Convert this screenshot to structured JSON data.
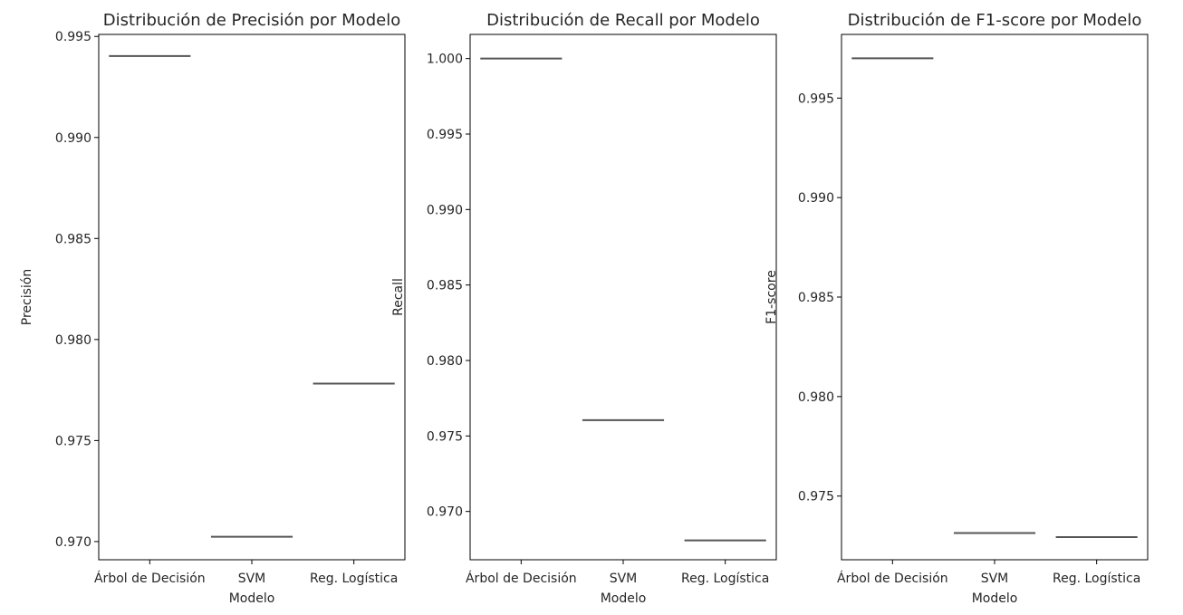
{
  "chart_data": [
    {
      "type": "box",
      "title": "Distribución de Precisión por Modelo",
      "xlabel": "Modelo",
      "ylabel": "Precisión",
      "categories": [
        "Árbol de Decisión",
        "SVM",
        "Reg. Logística"
      ],
      "values": [
        0.99403,
        0.97024,
        0.97782
      ],
      "ylim": [
        0.9691,
        0.9951
      ],
      "yticks": [
        0.97,
        0.975,
        0.98,
        0.985,
        0.99,
        0.995
      ],
      "ytick_labels": [
        "0.970",
        "0.975",
        "0.980",
        "0.985",
        "0.990",
        "0.995"
      ],
      "grid": false
    },
    {
      "type": "box",
      "title": "Distribución de Recall por Modelo",
      "xlabel": "Modelo",
      "ylabel": "Recall",
      "categories": [
        "Árbol de Decisión",
        "SVM",
        "Reg. Logística"
      ],
      "values": [
        1.0,
        0.97605,
        0.96808
      ],
      "ylim": [
        0.9668,
        1.0016
      ],
      "yticks": [
        0.97,
        0.975,
        0.98,
        0.985,
        0.99,
        0.995,
        1.0
      ],
      "ytick_labels": [
        "0.970",
        "0.975",
        "0.980",
        "0.985",
        "0.990",
        "0.995",
        "1.000"
      ],
      "grid": false
    },
    {
      "type": "box",
      "title": "Distribución de F1-score por Modelo",
      "xlabel": "Modelo",
      "ylabel": "F1-score",
      "categories": [
        "Árbol de Decisión",
        "SVM",
        "Reg. Logística"
      ],
      "values": [
        0.997,
        0.97314,
        0.97294
      ],
      "ylim": [
        0.9718,
        0.9982
      ],
      "yticks": [
        0.975,
        0.98,
        0.985,
        0.99,
        0.995
      ],
      "ytick_labels": [
        "0.975",
        "0.980",
        "0.985",
        "0.990",
        "0.995"
      ],
      "grid": false
    }
  ],
  "colors": {
    "box_line": "#555555",
    "axis": "#000000",
    "text": "#262626"
  }
}
